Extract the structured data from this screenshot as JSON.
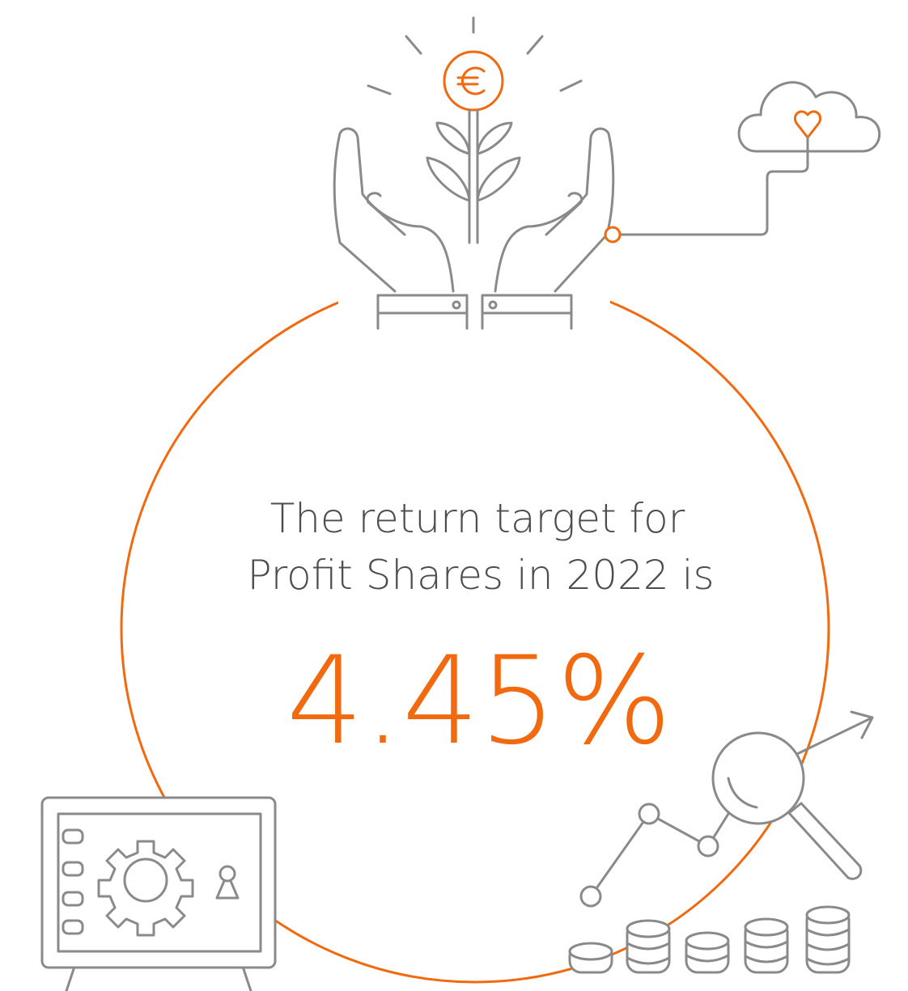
{
  "headline": {
    "lines": [
      "The return target for",
      "Profit Shares in 2022 is"
    ]
  },
  "figure": {
    "value": "4.45%"
  }
}
